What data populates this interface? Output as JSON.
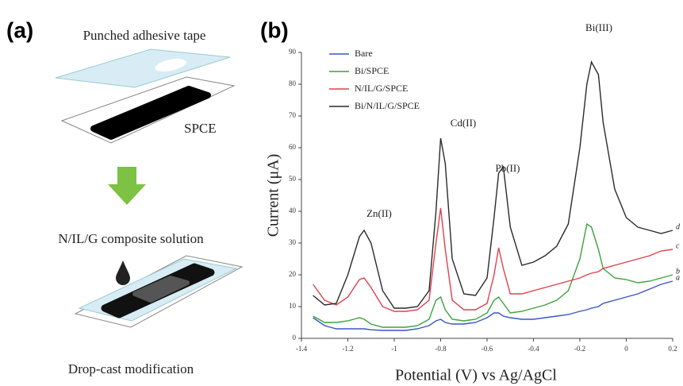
{
  "panel_a": {
    "label": "(a)",
    "tape_label": "Punched adhesive tape",
    "electrode_label": "SPCE",
    "solution_label": "N/IL/G composite solution",
    "step_label": "Drop-cast modification"
  },
  "chart_data": {
    "type": "line",
    "panel_label": "(b)",
    "x_label": "Potential (V) vs Ag/AgCl",
    "y_label": "Current (μA)",
    "xlim": [
      -1.4,
      0.2
    ],
    "ylim": [
      0,
      90
    ],
    "xticks": [
      -1.4,
      -1.2,
      -1,
      -0.8,
      -0.6,
      -0.4,
      -0.2,
      0,
      0.2
    ],
    "yticks": [
      0,
      10,
      20,
      30,
      40,
      50,
      60,
      70,
      80,
      90
    ],
    "grid": false,
    "legend": "upper left",
    "annotations": [
      "Zn(II)",
      "Cd(II)",
      "Pb(II)",
      "Bi(III)"
    ],
    "x": [
      -1.35,
      -1.3,
      -1.25,
      -1.2,
      -1.15,
      -1.13,
      -1.1,
      -1.05,
      -1.0,
      -0.95,
      -0.9,
      -0.85,
      -0.82,
      -0.8,
      -0.78,
      -0.75,
      -0.7,
      -0.65,
      -0.6,
      -0.57,
      -0.55,
      -0.53,
      -0.5,
      -0.45,
      -0.4,
      -0.35,
      -0.3,
      -0.25,
      -0.2,
      -0.17,
      -0.15,
      -0.12,
      -0.1,
      -0.05,
      0,
      0.05,
      0.1,
      0.15,
      0.2
    ],
    "series": [
      {
        "name": "Bare",
        "end_label": "a",
        "color": "#3a55c4",
        "values": [
          6.5,
          4,
          3,
          3,
          3,
          3,
          2.7,
          2.5,
          2.5,
          2.5,
          3,
          4,
          5.5,
          6,
          5,
          4.5,
          4.5,
          5,
          6.5,
          8,
          8,
          7,
          6.5,
          6,
          6,
          6.5,
          7,
          7.5,
          8.5,
          9,
          9.5,
          10,
          11,
          12,
          13,
          14,
          15.5,
          17,
          18
        ]
      },
      {
        "name": "Bi/SPCE",
        "end_label": "b",
        "color": "#3da23d",
        "values": [
          7,
          5,
          5,
          5.5,
          6.5,
          6,
          4.5,
          3.5,
          3.5,
          3.5,
          4,
          6,
          12,
          13,
          9,
          6,
          5.5,
          6,
          8,
          12,
          13,
          11,
          8,
          8.5,
          9.5,
          10.5,
          12,
          15,
          25,
          36,
          35,
          28,
          22,
          19,
          18.5,
          17.5,
          18,
          19,
          20
        ]
      },
      {
        "name": "N/IL/G/SPCE",
        "end_label": "c",
        "color": "#e0404f",
        "values": [
          17,
          12,
          10.5,
          13,
          18.5,
          19,
          16,
          10,
          8.5,
          8.5,
          9,
          12,
          30,
          41,
          28,
          12,
          9,
          9,
          11,
          20,
          28.5,
          22,
          14,
          14,
          15,
          16,
          17,
          18,
          19,
          20,
          20.5,
          21,
          22,
          23,
          24,
          25,
          26,
          27.5,
          28
        ]
      },
      {
        "name": "Bi/N/IL/G/SPCE",
        "end_label": "d",
        "color": "#2a2a2a",
        "values": [
          13.5,
          10.5,
          11,
          20,
          32,
          34,
          30,
          15,
          9.5,
          9.5,
          10,
          15,
          40,
          63,
          55,
          25,
          14,
          13.5,
          19,
          38,
          52,
          54,
          35,
          23,
          24,
          26,
          29,
          36,
          60,
          80,
          87,
          83,
          68,
          47,
          38,
          35,
          34,
          33,
          34
        ]
      }
    ]
  }
}
